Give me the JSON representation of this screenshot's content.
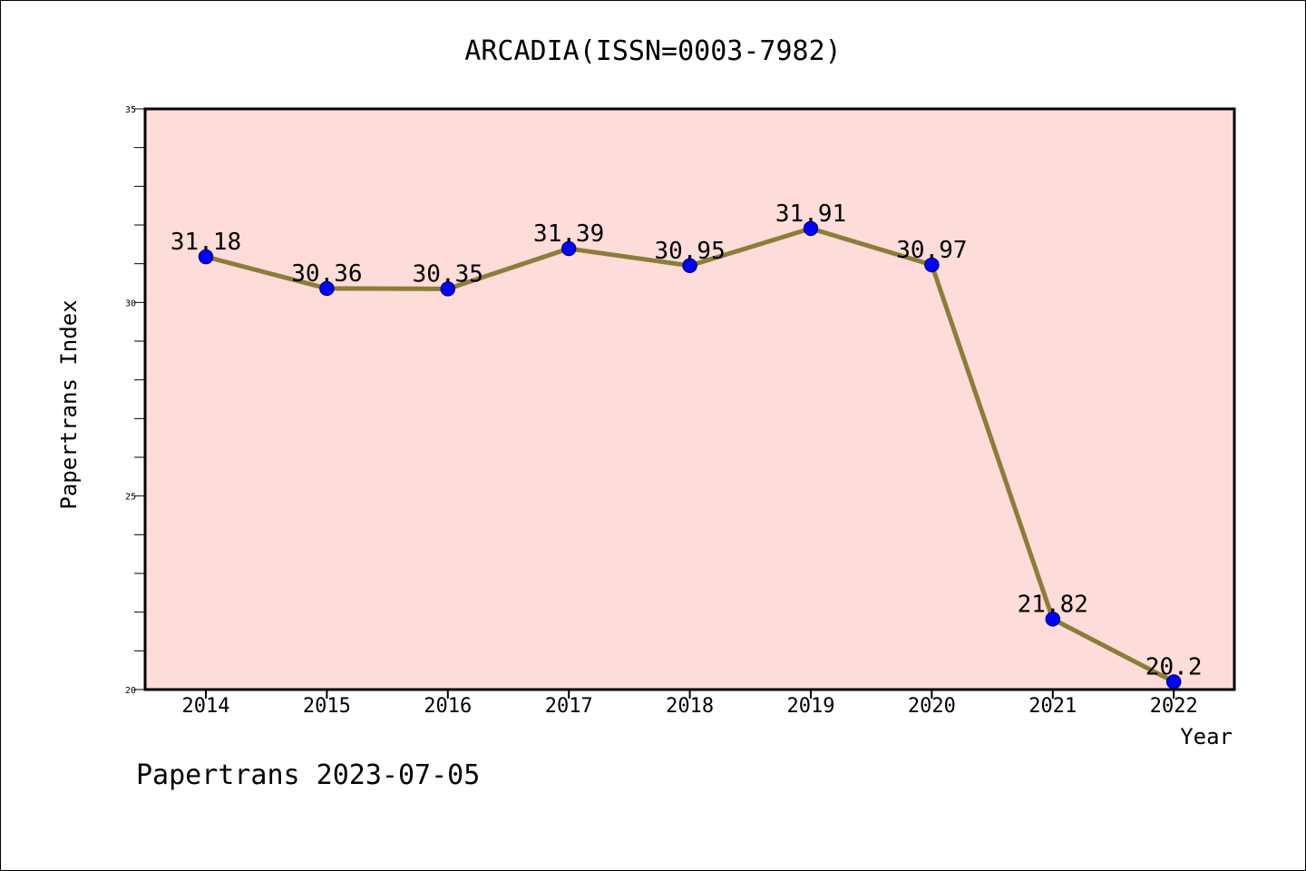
{
  "chart_data": {
    "type": "line",
    "title": "ARCADIA(ISSN=0003-7982)",
    "xlabel": "Year",
    "ylabel": "Papertrans Index",
    "categories": [
      "2014",
      "2015",
      "2016",
      "2017",
      "2018",
      "2019",
      "2020",
      "2021",
      "2022"
    ],
    "series": [
      {
        "values": [
          31.18,
          30.36,
          30.35,
          31.39,
          30.95,
          31.91,
          30.97,
          21.82,
          20.2
        ],
        "labels": [
          "31.18",
          "30.36",
          "30.35",
          "31.39",
          "30.95",
          "31.91",
          "30.97",
          "21.82",
          "20.2"
        ]
      }
    ],
    "ylim": [
      20,
      35
    ],
    "yticks": [
      "20",
      "25",
      "30",
      "35"
    ],
    "grid": false,
    "colors": {
      "plot_background": "#fddcd9",
      "line": "#8b7d3a",
      "marker": "#0000ff"
    }
  },
  "footer_text": "Papertrans 2023-07-05"
}
